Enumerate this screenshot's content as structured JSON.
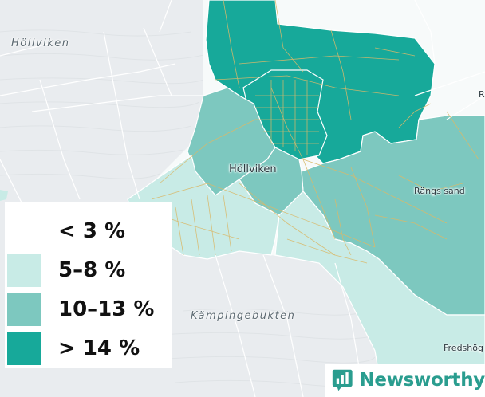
{
  "map": {
    "labels": {
      "hollviken_water": "Höllviken",
      "hollviken_town": "Höllviken",
      "rangs_sand": "Rängs sand",
      "kampingebukten": "Kämpingebukten",
      "fredshog": "Fredshög",
      "edge_r": "R"
    },
    "colors": {
      "water": "#e9ecef",
      "land": "#f7fafa",
      "bin_lt3": "#ffffff",
      "bin_5_8": "#c8ebe6",
      "bin_10_13": "#7dc8bf",
      "bin_gt14": "#17a99a",
      "roads": "#d9b96a",
      "boundary": "#ffffff"
    }
  },
  "legend": {
    "items": [
      {
        "label": "< 3 %",
        "color": "#ffffff"
      },
      {
        "label": "5–8 %",
        "color": "#c8ebe6"
      },
      {
        "label": "10–13 %",
        "color": "#7dc8bf"
      },
      {
        "label": "> 14 %",
        "color": "#17a99a"
      }
    ]
  },
  "brand": {
    "name": "Newsworthy",
    "icon": "newsworthy-logo-icon",
    "color": "#2a9d8f"
  }
}
